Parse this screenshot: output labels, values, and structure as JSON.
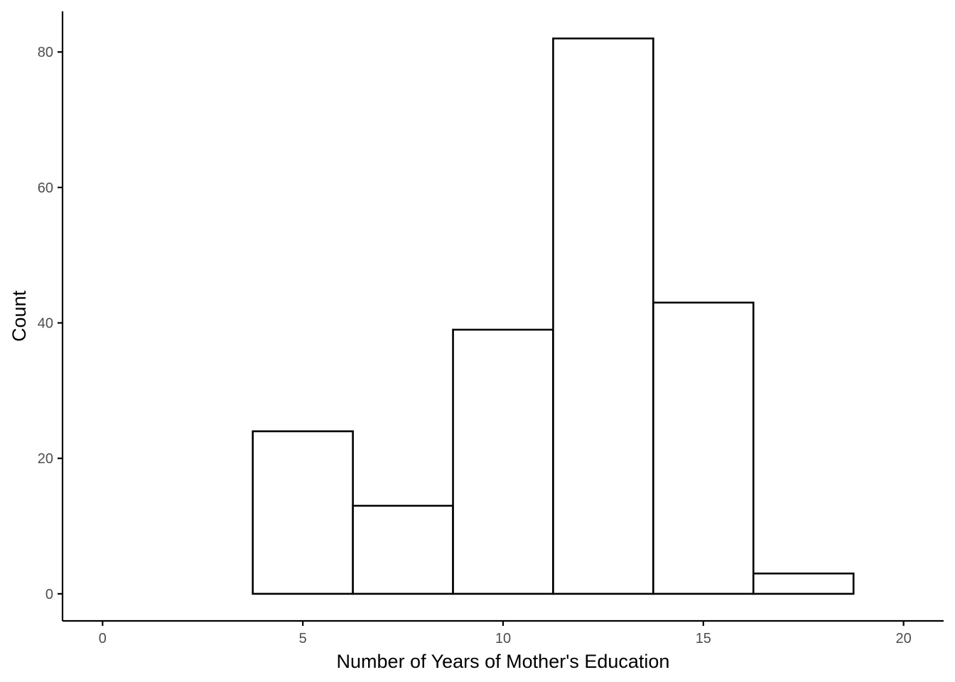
{
  "chart_data": {
    "type": "bar",
    "subtype": "histogram",
    "title": "",
    "xlabel": "Number of Years of Mother's Education",
    "ylabel": "Count",
    "bin_width": 2.5,
    "bins": [
      {
        "x0": 1.25,
        "x1": 3.75,
        "count": 0
      },
      {
        "x0": 3.75,
        "x1": 6.25,
        "count": 24
      },
      {
        "x0": 6.25,
        "x1": 8.75,
        "count": 13
      },
      {
        "x0": 8.75,
        "x1": 11.25,
        "count": 39
      },
      {
        "x0": 11.25,
        "x1": 13.75,
        "count": 82
      },
      {
        "x0": 13.75,
        "x1": 16.25,
        "count": 43
      },
      {
        "x0": 16.25,
        "x1": 18.75,
        "count": 3
      }
    ],
    "xlim": [
      -1,
      21
    ],
    "ylim": [
      -4,
      86
    ],
    "x_ticks": [
      0,
      5,
      10,
      15,
      20
    ],
    "x_tick_labels": [
      "0",
      "5",
      "10",
      "15",
      "20"
    ],
    "y_ticks": [
      0,
      20,
      40,
      60,
      80
    ],
    "y_tick_labels": [
      "0",
      "20",
      "40",
      "60",
      "80"
    ],
    "bar_fill": "#ffffff",
    "bar_stroke": "#000000",
    "tick_label_color": "#4d4d4d",
    "grid": false,
    "legend": "none"
  }
}
